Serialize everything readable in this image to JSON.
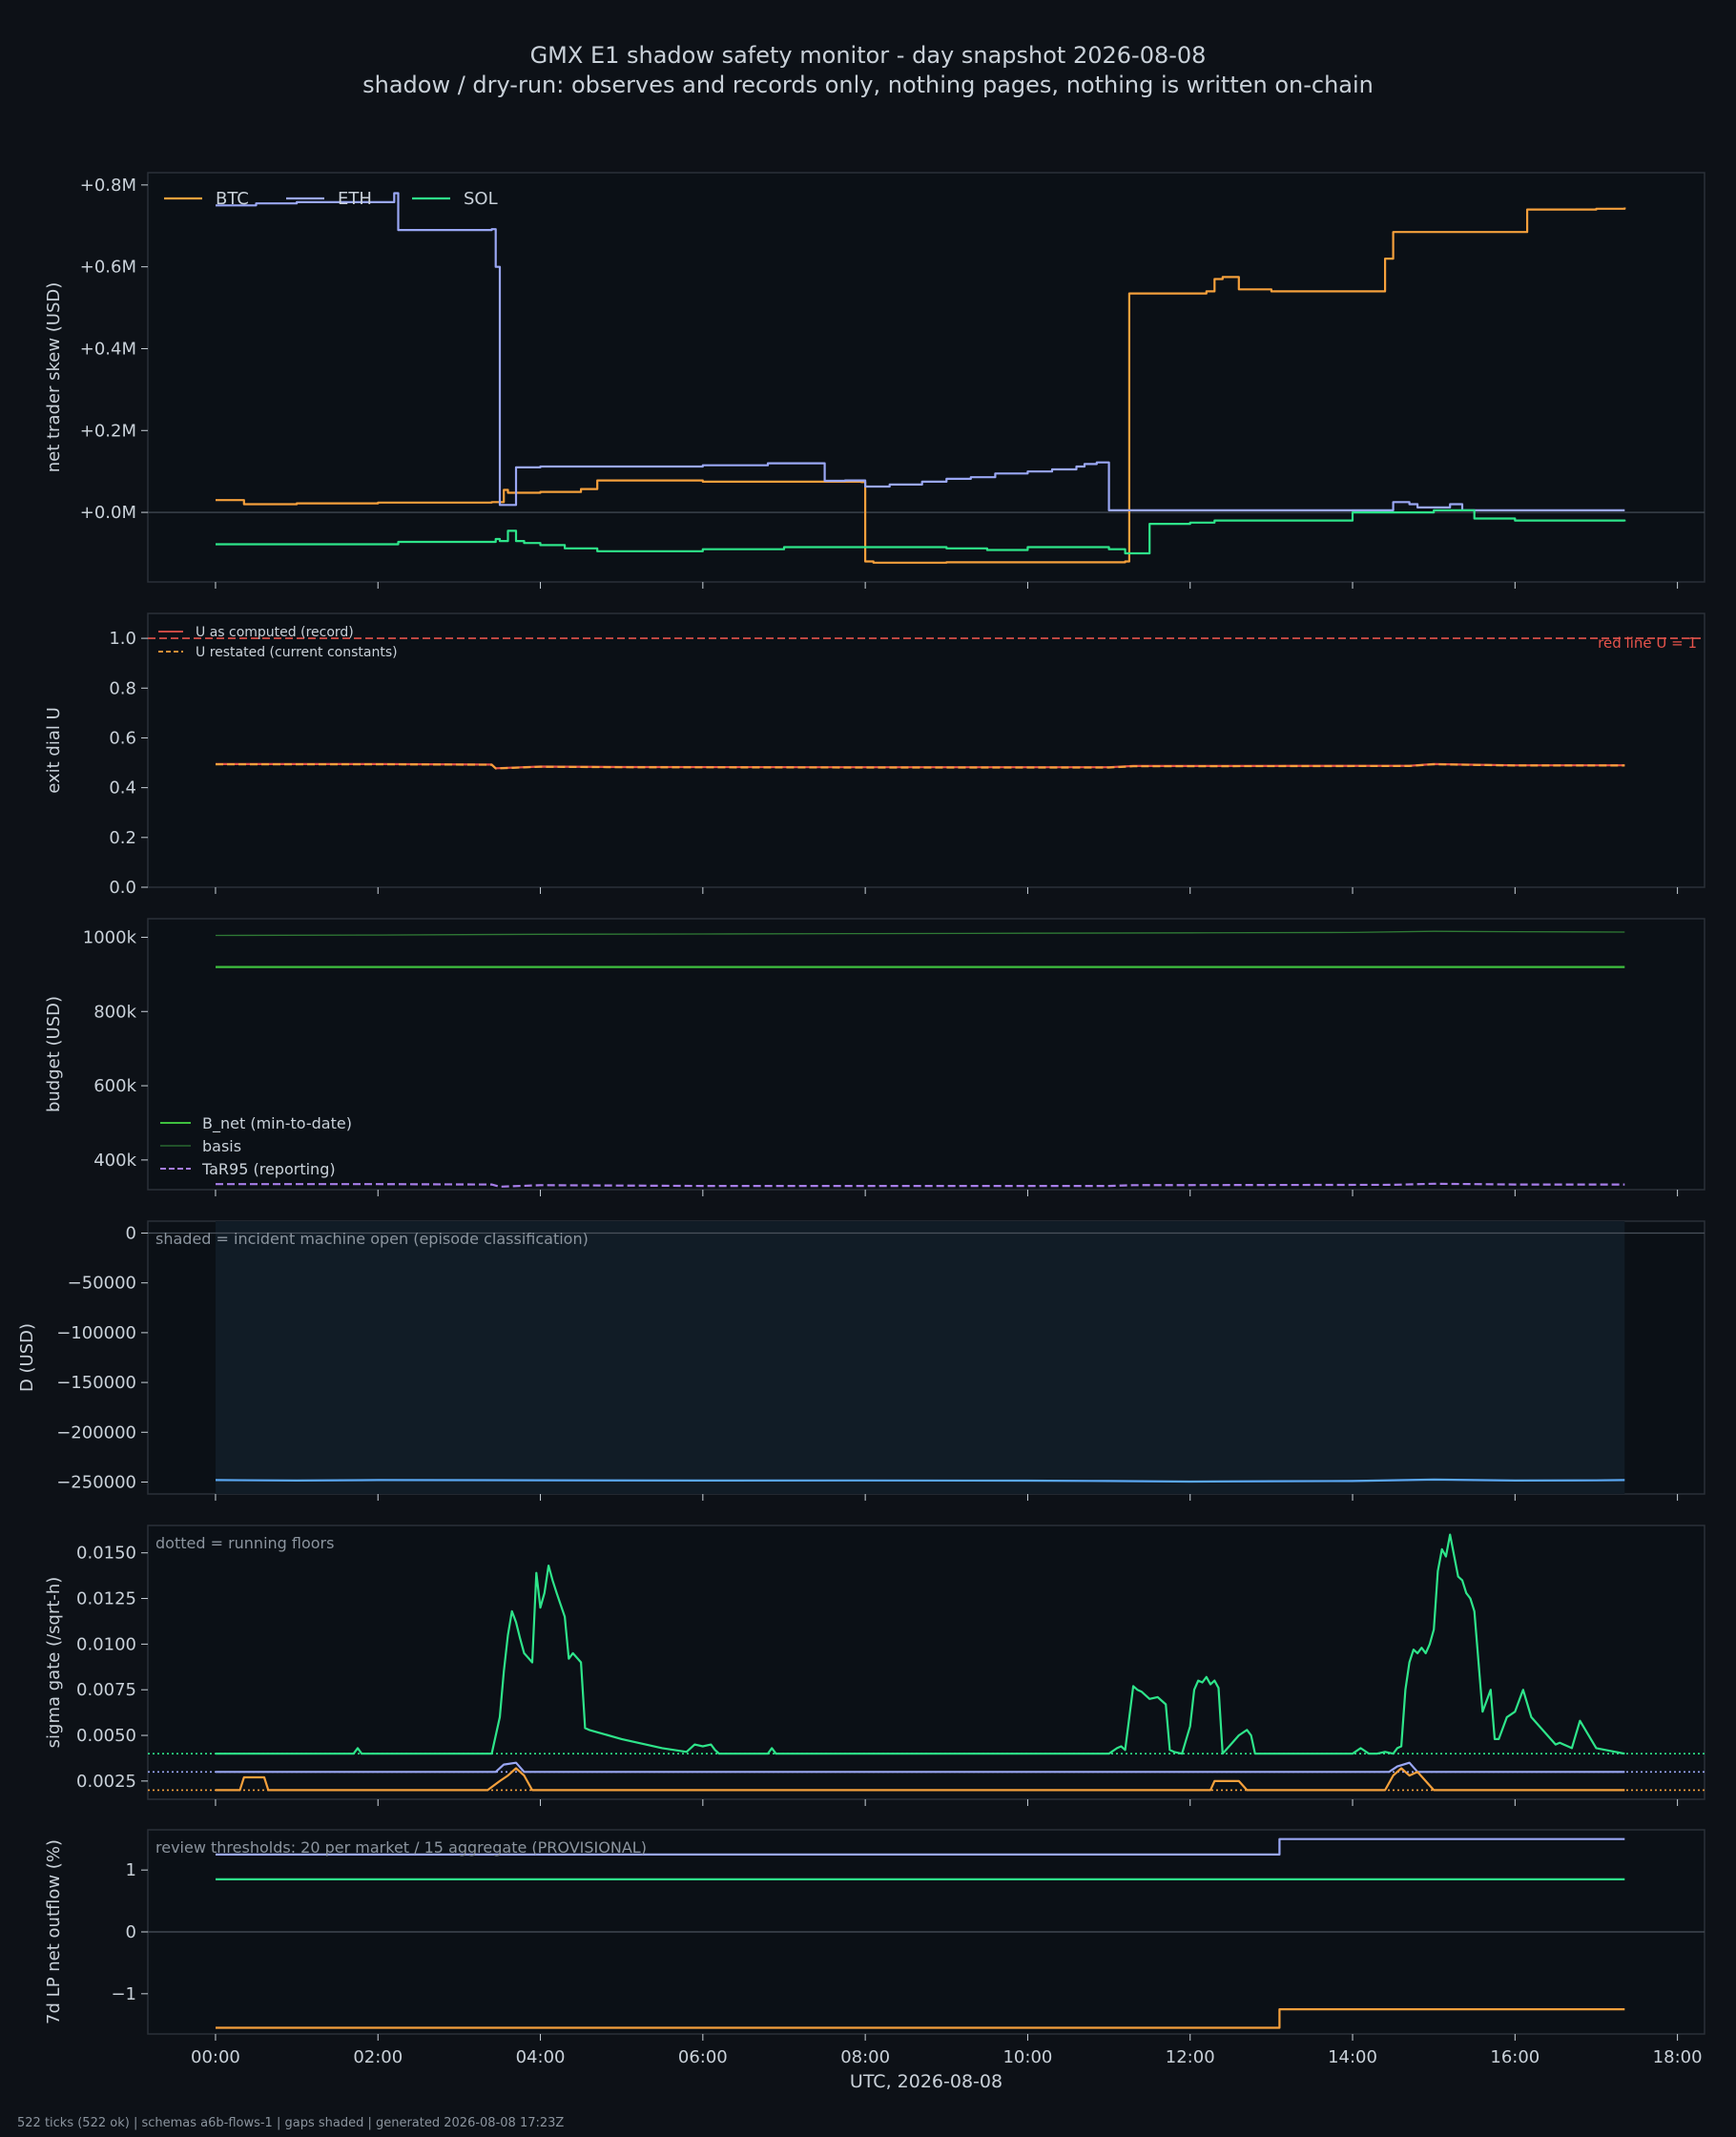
{
  "figure": {
    "title": "GMX E1 shadow safety monitor - day snapshot 2026-08-08",
    "subtitle": "shadow / dry-run: observes and records only, nothing pages, nothing is written on-chain",
    "footer": "522 ticks (522 ok) | schemas a6b-flows-1 | gaps shaded | generated 2026-08-08 17:23Z"
  },
  "colors": {
    "background": "#0d1117",
    "panel": "#0b1016",
    "frame": "#2b3138",
    "text": "#c9d1d9",
    "muted": "#8b949e",
    "btc": "#f5a03c",
    "eth": "#9aa7f4",
    "sol": "#2ee58a",
    "red": "#e5534b",
    "budget": "#3fbf3f",
    "basis": "#2f7a35",
    "tar": "#a67de8",
    "drawdown": "#5aa7f2",
    "shade": "#111c26"
  },
  "chart_data": [
    {
      "id": "skew",
      "type": "line",
      "ylabel": "net trader skew (USD)",
      "xlim": [
        -0.8333,
        18.3333
      ],
      "ylim": [
        -170000,
        830000
      ],
      "yticks": [
        0,
        200000,
        400000,
        600000,
        800000
      ],
      "ytick_labels": [
        "+0.0M",
        "+0.2M",
        "+0.4M",
        "+0.6M",
        "+0.8M"
      ],
      "xticks": [
        0,
        2,
        4,
        6,
        8,
        10,
        12,
        14,
        16,
        18
      ],
      "legend_position": "top-left",
      "hlines": [
        {
          "y": 0,
          "color": "#4a525c",
          "style": "solid"
        }
      ],
      "series": [
        {
          "name": "BTC",
          "color": "btc",
          "step": true,
          "x": [
            0,
            0.3,
            0.35,
            1.0,
            2.0,
            3.25,
            3.4,
            3.55,
            3.6,
            4.0,
            4.5,
            4.7,
            6.0,
            7.0,
            7.95,
            8.0,
            8.1,
            9.0,
            11.2,
            11.25,
            12.2,
            12.3,
            12.4,
            12.6,
            13.0,
            14.35,
            14.4,
            14.5,
            16.0,
            16.15,
            16.8,
            17.0,
            17.35
          ],
          "y": [
            30000,
            30000,
            20000,
            22000,
            24000,
            24000,
            25000,
            55000,
            48000,
            50000,
            57000,
            78000,
            75000,
            75000,
            74000,
            -120000,
            -123000,
            -122000,
            -120000,
            535000,
            540000,
            570000,
            575000,
            545000,
            540000,
            540000,
            620000,
            685000,
            685000,
            740000,
            740000,
            742000,
            745000
          ]
        },
        {
          "name": "ETH",
          "color": "eth",
          "step": true,
          "x": [
            0,
            0.2,
            0.5,
            1.0,
            2.2,
            2.25,
            3.0,
            3.4,
            3.45,
            3.5,
            3.6,
            3.7,
            4.0,
            6.0,
            6.8,
            7.5,
            7.75,
            8.0,
            8.3,
            8.7,
            9.0,
            9.3,
            9.6,
            10.0,
            10.3,
            10.6,
            10.7,
            10.85,
            11.0,
            14.0,
            14.5,
            14.7,
            14.8,
            15.2,
            15.35,
            17.35
          ],
          "y": [
            750000,
            750000,
            755000,
            758000,
            780000,
            690000,
            690000,
            692000,
            600000,
            18000,
            18000,
            110000,
            112000,
            115000,
            120000,
            77000,
            78000,
            63000,
            68000,
            75000,
            82000,
            86000,
            95000,
            100000,
            105000,
            112000,
            118000,
            122000,
            5000,
            5000,
            25000,
            20000,
            12000,
            20000,
            5000,
            5000
          ]
        },
        {
          "name": "SOL",
          "color": "sol",
          "step": true,
          "x": [
            0,
            1.0,
            2.0,
            2.25,
            3.0,
            3.45,
            3.5,
            3.6,
            3.7,
            3.8,
            4.0,
            4.3,
            4.7,
            5.0,
            6.0,
            7.0,
            8.0,
            9.0,
            9.5,
            10.0,
            10.5,
            11.0,
            11.2,
            11.5,
            12.0,
            12.3,
            13.0,
            14.0,
            14.5,
            15.0,
            15.5,
            16.0,
            17.0,
            17.35
          ],
          "y": [
            -78000,
            -78000,
            -78000,
            -72000,
            -72000,
            -65000,
            -70000,
            -45000,
            -70000,
            -75000,
            -80000,
            -88000,
            -95000,
            -95000,
            -90000,
            -85000,
            -85000,
            -88000,
            -92000,
            -85000,
            -85000,
            -90000,
            -100000,
            -28000,
            -25000,
            -20000,
            -20000,
            0,
            0,
            5000,
            -15000,
            -20000,
            -20000,
            -22000
          ]
        }
      ]
    },
    {
      "id": "exit-dial",
      "type": "line",
      "ylabel": "exit dial U",
      "xlim": [
        -0.8333,
        18.3333
      ],
      "ylim": [
        0,
        1.1
      ],
      "yticks": [
        0,
        0.2,
        0.4,
        0.6,
        0.8,
        1.0
      ],
      "ytick_labels": [
        "0.0",
        "0.2",
        "0.4",
        "0.6",
        "0.8",
        "1.0"
      ],
      "xticks": [
        0,
        2,
        4,
        6,
        8,
        10,
        12,
        14,
        16,
        18
      ],
      "legend_position": "top-left",
      "hlines": [
        {
          "y": 1.0,
          "color": "red",
          "style": "dashed",
          "label": "red line U = 1"
        }
      ],
      "series": [
        {
          "name": "U as computed (record)",
          "color": "red",
          "style": "solid",
          "x": [
            0,
            2,
            3.4,
            3.45,
            4.0,
            5.0,
            8.0,
            11.0,
            11.3,
            14.7,
            15.0,
            16.0,
            17.35
          ],
          "y": [
            0.495,
            0.495,
            0.493,
            0.478,
            0.485,
            0.483,
            0.482,
            0.482,
            0.487,
            0.488,
            0.495,
            0.49,
            0.49
          ]
        },
        {
          "name": "U restated (current constants)",
          "color": "btc",
          "style": "dashed",
          "x": [
            0,
            2,
            3.4,
            3.45,
            4.0,
            5.0,
            8.0,
            11.0,
            11.3,
            14.7,
            15.0,
            16.0,
            17.35
          ],
          "y": [
            0.494,
            0.494,
            0.492,
            0.477,
            0.484,
            0.482,
            0.481,
            0.481,
            0.486,
            0.487,
            0.494,
            0.489,
            0.489
          ]
        }
      ]
    },
    {
      "id": "budget",
      "type": "line",
      "ylabel": "budget (USD)",
      "xlim": [
        -0.8333,
        18.3333
      ],
      "ylim": [
        320000,
        1050000
      ],
      "yticks": [
        400000,
        600000,
        800000,
        1000000
      ],
      "ytick_labels": [
        "400k",
        "600k",
        "800k",
        "1000k"
      ],
      "xticks": [
        0,
        2,
        4,
        6,
        8,
        10,
        12,
        14,
        16,
        18
      ],
      "legend_position": "bottom-left",
      "series": [
        {
          "name": "B_net (min-to-date)",
          "color": "budget",
          "style": "solid",
          "x": [
            0,
            17.35
          ],
          "y": [
            920000,
            920000
          ]
        },
        {
          "name": "basis",
          "color": "basis",
          "style": "solid",
          "x": [
            0,
            2,
            4,
            6,
            8,
            10,
            12,
            14,
            15,
            16,
            17.35
          ],
          "y": [
            1005000,
            1006000,
            1008000,
            1009000,
            1010000,
            1011000,
            1012000,
            1013000,
            1016000,
            1015000,
            1014000
          ]
        },
        {
          "name": "TaR95 (reporting)",
          "color": "tar",
          "style": "dashed",
          "x": [
            0,
            2,
            3.4,
            3.5,
            4.0,
            6.0,
            8.0,
            11.0,
            11.3,
            14.5,
            15.0,
            16.0,
            17.35
          ],
          "y": [
            335000,
            335000,
            334000,
            328000,
            332000,
            330000,
            330000,
            330000,
            332000,
            333000,
            336000,
            334000,
            334000
          ]
        }
      ]
    },
    {
      "id": "drawdown",
      "type": "line",
      "ylabel": "D (USD)",
      "annotation": "shaded = incident machine open (episode classification)",
      "xlim": [
        -0.8333,
        18.3333
      ],
      "ylim": [
        -262000,
        12000
      ],
      "yticks": [
        0,
        -50000,
        -100000,
        -150000,
        -200000,
        -250000
      ],
      "ytick_labels": [
        "0",
        "−50000",
        "−100000",
        "−150000",
        "−200000",
        "−250000"
      ],
      "xticks": [
        0,
        2,
        4,
        6,
        8,
        10,
        12,
        14,
        16,
        18
      ],
      "shaded_x": [
        0,
        17.35
      ],
      "hlines": [
        {
          "y": 0,
          "color": "#4a525c",
          "style": "solid"
        }
      ],
      "series": [
        {
          "name": "",
          "color": "drawdown",
          "style": "solid",
          "x": [
            0,
            1,
            2,
            4,
            6,
            8,
            10,
            11,
            12,
            13,
            14,
            15,
            16,
            17,
            17.35
          ],
          "y": [
            -248000,
            -248500,
            -248000,
            -248200,
            -248500,
            -248400,
            -248600,
            -249000,
            -249500,
            -249200,
            -249000,
            -247500,
            -248500,
            -248300,
            -248000
          ]
        }
      ]
    },
    {
      "id": "sigma-gate",
      "type": "line",
      "ylabel": "sigma gate (/sqrt-h)",
      "annotation": "dotted = running floors",
      "xlim": [
        -0.8333,
        18.3333
      ],
      "ylim": [
        0.0015,
        0.0165
      ],
      "yticks": [
        0.0025,
        0.005,
        0.0075,
        0.01,
        0.0125,
        0.015
      ],
      "ytick_labels": [
        "0.0025",
        "0.0050",
        "0.0075",
        "0.0100",
        "0.0125",
        "0.0150"
      ],
      "xticks": [
        0,
        2,
        4,
        6,
        8,
        10,
        12,
        14,
        16,
        18
      ],
      "hlines": [
        {
          "y": 0.004,
          "color": "sol",
          "style": "dotted"
        },
        {
          "y": 0.003,
          "color": "eth",
          "style": "dotted"
        },
        {
          "y": 0.002,
          "color": "btc",
          "style": "dotted"
        }
      ],
      "series": [
        {
          "name": "SOL",
          "color": "sol",
          "style": "solid",
          "x": [
            0,
            1.7,
            1.75,
            1.8,
            3.4,
            3.5,
            3.55,
            3.6,
            3.65,
            3.7,
            3.75,
            3.8,
            3.9,
            3.95,
            4.0,
            4.05,
            4.1,
            4.15,
            4.2,
            4.3,
            4.35,
            4.4,
            4.5,
            4.55,
            4.6,
            5.0,
            5.5,
            5.8,
            5.9,
            6.0,
            6.1,
            6.15,
            6.2,
            6.8,
            6.85,
            6.9,
            11.0,
            11.1,
            11.15,
            11.2,
            11.3,
            11.35,
            11.4,
            11.5,
            11.6,
            11.7,
            11.75,
            11.8,
            11.9,
            12.0,
            12.05,
            12.1,
            12.15,
            12.2,
            12.25,
            12.3,
            12.35,
            12.4,
            12.5,
            12.6,
            12.7,
            12.75,
            12.8,
            14.0,
            14.1,
            14.2,
            14.3,
            14.4,
            14.5,
            14.55,
            14.6,
            14.65,
            14.7,
            14.75,
            14.8,
            14.85,
            14.9,
            14.95,
            15.0,
            15.05,
            15.1,
            15.15,
            15.2,
            15.3,
            15.35,
            15.4,
            15.45,
            15.5,
            15.6,
            15.7,
            15.75,
            15.8,
            15.9,
            16.0,
            16.1,
            16.2,
            16.3,
            16.5,
            16.55,
            16.6,
            16.65,
            16.7,
            16.8,
            17.0,
            17.35
          ],
          "y": [
            0.004,
            0.004,
            0.0043,
            0.004,
            0.004,
            0.006,
            0.0085,
            0.0105,
            0.0118,
            0.0112,
            0.0103,
            0.0095,
            0.009,
            0.0139,
            0.012,
            0.0128,
            0.0143,
            0.0135,
            0.0128,
            0.0115,
            0.0092,
            0.0095,
            0.009,
            0.0054,
            0.0053,
            0.0048,
            0.0043,
            0.0041,
            0.0045,
            0.0044,
            0.0045,
            0.0042,
            0.004,
            0.004,
            0.0043,
            0.004,
            0.004,
            0.0043,
            0.0044,
            0.0042,
            0.0077,
            0.0075,
            0.0074,
            0.007,
            0.0071,
            0.0067,
            0.0042,
            0.0041,
            0.004,
            0.0055,
            0.0075,
            0.008,
            0.0079,
            0.0082,
            0.0078,
            0.008,
            0.0076,
            0.004,
            0.0045,
            0.005,
            0.0053,
            0.005,
            0.004,
            0.004,
            0.0043,
            0.004,
            0.004,
            0.0041,
            0.004,
            0.0043,
            0.0044,
            0.0075,
            0.009,
            0.0097,
            0.0095,
            0.0098,
            0.0095,
            0.01,
            0.0108,
            0.014,
            0.0152,
            0.0148,
            0.016,
            0.0137,
            0.0135,
            0.0128,
            0.0125,
            0.0118,
            0.0063,
            0.0075,
            0.0048,
            0.0048,
            0.006,
            0.0063,
            0.0075,
            0.006,
            0.0055,
            0.0045,
            0.0046,
            0.0045,
            0.0044,
            0.0043,
            0.0058,
            0.0043,
            0.004
          ]
        },
        {
          "name": "ETH",
          "color": "eth",
          "style": "solid",
          "x": [
            0,
            3.45,
            3.55,
            3.7,
            3.8,
            14.45,
            14.55,
            14.7,
            14.8,
            17.35
          ],
          "y": [
            0.003,
            0.003,
            0.0034,
            0.0035,
            0.003,
            0.003,
            0.0033,
            0.0035,
            0.003,
            0.003
          ]
        },
        {
          "name": "BTC",
          "color": "btc",
          "style": "solid",
          "x": [
            0,
            0.3,
            0.35,
            0.6,
            0.65,
            3.35,
            3.5,
            3.6,
            3.7,
            3.8,
            3.9,
            12.25,
            12.3,
            12.6,
            12.7,
            14.4,
            14.5,
            14.6,
            14.7,
            14.8,
            14.9,
            15.0,
            17.35
          ],
          "y": [
            0.002,
            0.002,
            0.0027,
            0.0027,
            0.002,
            0.002,
            0.0025,
            0.0028,
            0.0032,
            0.0028,
            0.002,
            0.002,
            0.0025,
            0.0025,
            0.002,
            0.002,
            0.0028,
            0.0032,
            0.0028,
            0.003,
            0.0025,
            0.002,
            0.002
          ]
        }
      ]
    },
    {
      "id": "lp-outflow",
      "type": "line",
      "ylabel": "7d LP net outflow (%)",
      "annotation": "review thresholds: 20 per market / 15 aggregate (PROVISIONAL)",
      "xlim": [
        -0.8333,
        18.3333
      ],
      "ylim": [
        -1.65,
        1.65
      ],
      "yticks": [
        -1,
        0,
        1
      ],
      "ytick_labels": [
        "−1",
        "0",
        "1"
      ],
      "xticks": [
        0,
        2,
        4,
        6,
        8,
        10,
        12,
        14,
        16,
        18
      ],
      "xtick_labels": [
        "00:00",
        "02:00",
        "04:00",
        "06:00",
        "08:00",
        "10:00",
        "12:00",
        "14:00",
        "16:00",
        "18:00"
      ],
      "xlabel": "UTC, 2026-08-08",
      "hlines": [
        {
          "y": 0,
          "color": "#4a525c",
          "style": "solid"
        }
      ],
      "series": [
        {
          "name": "ETH",
          "color": "eth",
          "step": true,
          "x": [
            0,
            13.1,
            17.35
          ],
          "y": [
            1.25,
            1.5,
            1.5
          ]
        },
        {
          "name": "SOL",
          "color": "sol",
          "step": true,
          "x": [
            0,
            17.35
          ],
          "y": [
            0.85,
            0.85
          ]
        },
        {
          "name": "BTC",
          "color": "btc",
          "step": true,
          "x": [
            0,
            13.1,
            17.35
          ],
          "y": [
            -1.55,
            -1.25,
            -1.25
          ]
        }
      ]
    }
  ]
}
